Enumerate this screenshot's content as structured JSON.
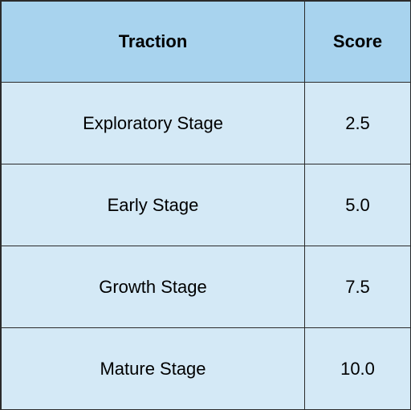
{
  "table": {
    "headers": [
      "Traction",
      "Score"
    ],
    "rows": [
      {
        "traction": "Exploratory Stage",
        "score": "2.5"
      },
      {
        "traction": "Early Stage",
        "score": "5.0"
      },
      {
        "traction": "Growth Stage",
        "score": "7.5"
      },
      {
        "traction": "Mature Stage",
        "score": "10.0"
      }
    ]
  },
  "colors": {
    "header_bg": "#a8d3ee",
    "row_bg": "#d4e9f6",
    "border": "#2b2b2b"
  }
}
